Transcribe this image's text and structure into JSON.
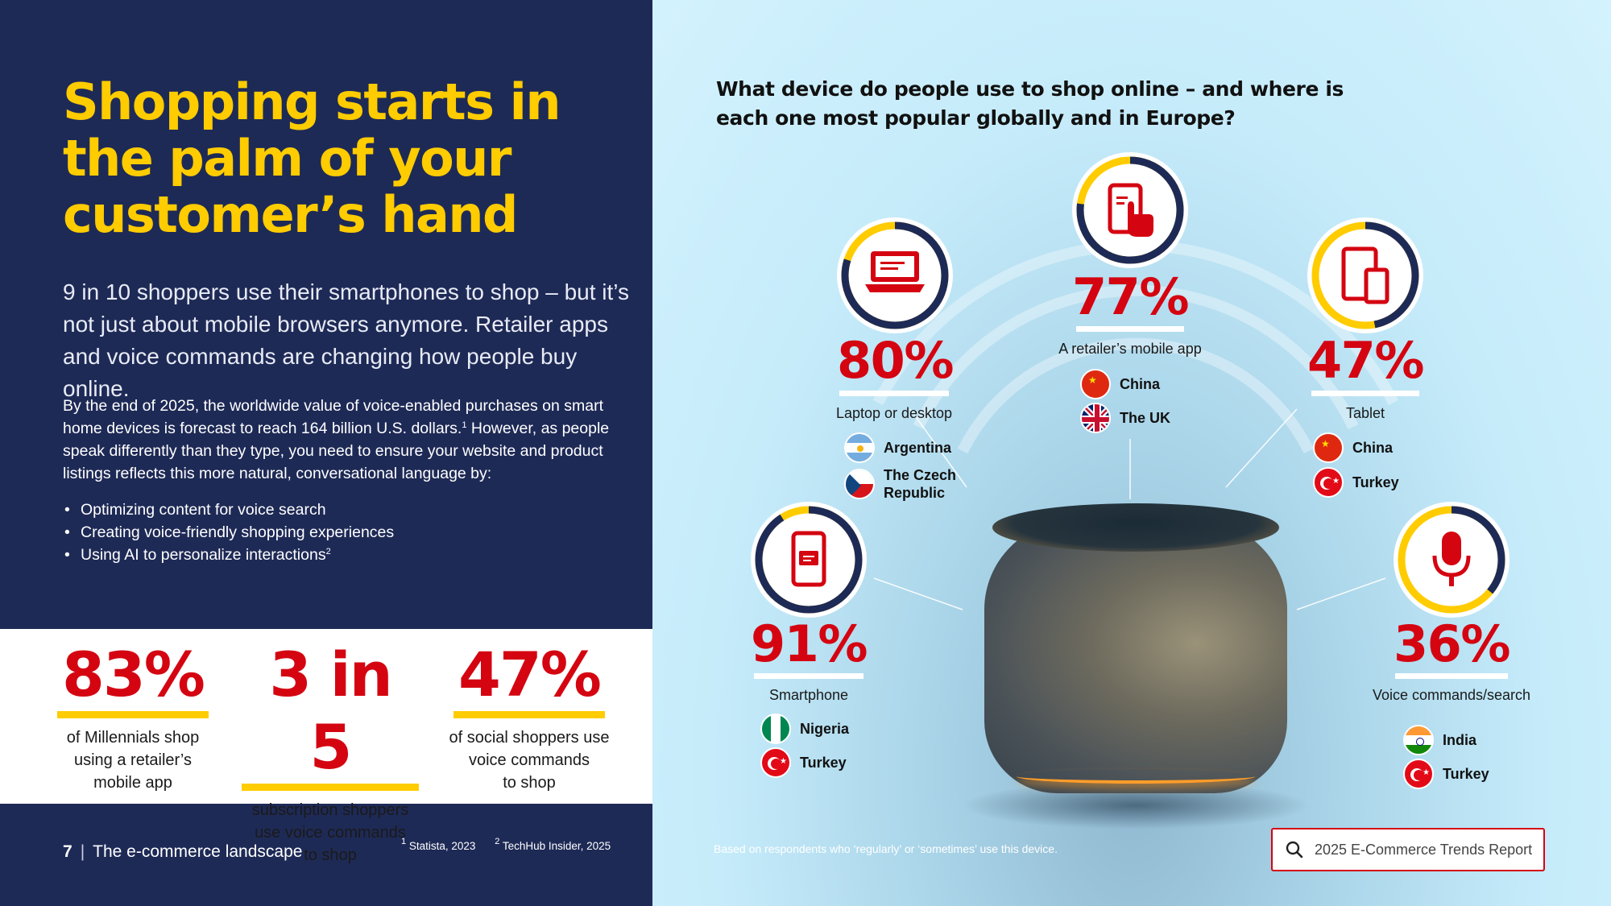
{
  "left": {
    "headline": "Shopping starts in the palm of your customer’s hand",
    "lead": "9 in 10 shoppers use their smartphones to shop – but it’s not just about mobile browsers anymore. Retailer apps and voice commands are changing how people buy online.",
    "body_part1": "By the end of 2025, the worldwide value of voice-enabled purchases on smart home devices is forecast to reach 164 billion U.S. dollars.",
    "body_sup": "1",
    "body_part2": " However, as people speak differently than they type, you need to ensure your website and product listings reflects this more natural, conversational language by:",
    "bullets": [
      {
        "text": "Optimizing content for voice search",
        "sup": ""
      },
      {
        "text": "Creating voice-friendly shopping experiences",
        "sup": ""
      },
      {
        "text": "Using AI to personalize interactions",
        "sup": "2"
      }
    ],
    "stats": [
      {
        "value": "83%",
        "label_lines": [
          "of Millennials shop",
          "using a retailer’s",
          "mobile app"
        ]
      },
      {
        "value": "3 in 5",
        "label_lines": [
          "subscription shoppers",
          "use voice commands",
          "to shop"
        ]
      },
      {
        "value": "47%",
        "label_lines": [
          "of social shoppers use",
          "voice commands",
          "to shop"
        ]
      }
    ],
    "footer": {
      "page_number": "7",
      "separator": "|",
      "section": "The e-commerce landscape"
    },
    "footnotes": [
      {
        "sup": "1",
        "text": " Statista, 2023"
      },
      {
        "sup": "2",
        "text": " TechHub Insider, 2025"
      }
    ]
  },
  "right": {
    "question": "What device do people use to shop online – and where is each one most popular globally and in Europe?",
    "devices": {
      "laptop": {
        "percent": "80%",
        "share": 0.8,
        "label": "Laptop or desktop",
        "icon": "laptop-icon",
        "countries": [
          {
            "name": "Argentina",
            "flag": "argentina"
          },
          {
            "name": "The Czech Republic",
            "flag": "czech"
          }
        ]
      },
      "app": {
        "percent": "77%",
        "share": 0.77,
        "label": "A retailer’s mobile app",
        "icon": "phone-tap-icon",
        "countries": [
          {
            "name": "China",
            "flag": "china"
          },
          {
            "name": "The UK",
            "flag": "uk"
          }
        ]
      },
      "tablet": {
        "percent": "47%",
        "share": 0.47,
        "label": "Tablet",
        "icon": "tablet-icon",
        "countries": [
          {
            "name": "China",
            "flag": "china"
          },
          {
            "name": "Turkey",
            "flag": "turkey"
          }
        ]
      },
      "smartphone": {
        "percent": "91%",
        "share": 0.91,
        "label": "Smartphone",
        "icon": "smartphone-icon",
        "countries": [
          {
            "name": "Nigeria",
            "flag": "nigeria"
          },
          {
            "name": "Turkey",
            "flag": "turkey"
          }
        ]
      },
      "voice": {
        "percent": "36%",
        "share": 0.36,
        "label": "Voice commands/search",
        "icon": "microphone-icon",
        "countries": [
          {
            "name": "India",
            "flag": "india"
          },
          {
            "name": "Turkey",
            "flag": "turkey"
          }
        ]
      }
    },
    "footnote": "Based on respondents who ‘regularly’ or ‘sometimes’ use this device.",
    "search": {
      "text": "2025 E-Commerce Trends Report",
      "icon": "search-icon"
    }
  },
  "colors": {
    "navy": "#1e2a56",
    "yellow": "#ffcc00",
    "red": "#d40511",
    "sky": "#cdeefc"
  }
}
